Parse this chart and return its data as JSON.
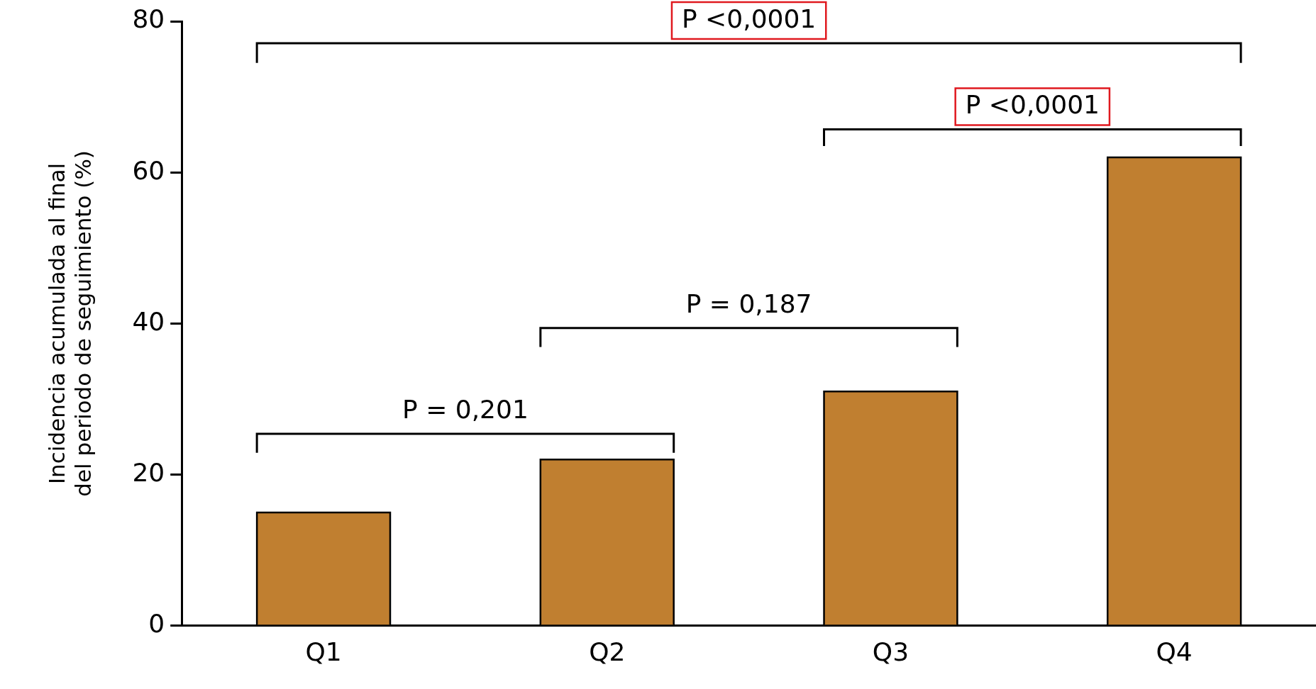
{
  "chart_data": {
    "type": "bar",
    "ylabel": "Incidencia acumulada al final\ndel periodo de seguimiento (%)",
    "categories": [
      "Q1",
      "Q2",
      "Q3",
      "Q4"
    ],
    "values": [
      15,
      22,
      31,
      62
    ],
    "color": "#c07f30",
    "ylim": [
      0,
      80
    ],
    "yticks": [
      0,
      20,
      40,
      60,
      80
    ],
    "grid": false,
    "legend": false,
    "annotations": [
      "P <0,0001",
      "P <0,0001",
      "P = 0,187",
      "P = 0,201"
    ]
  }
}
